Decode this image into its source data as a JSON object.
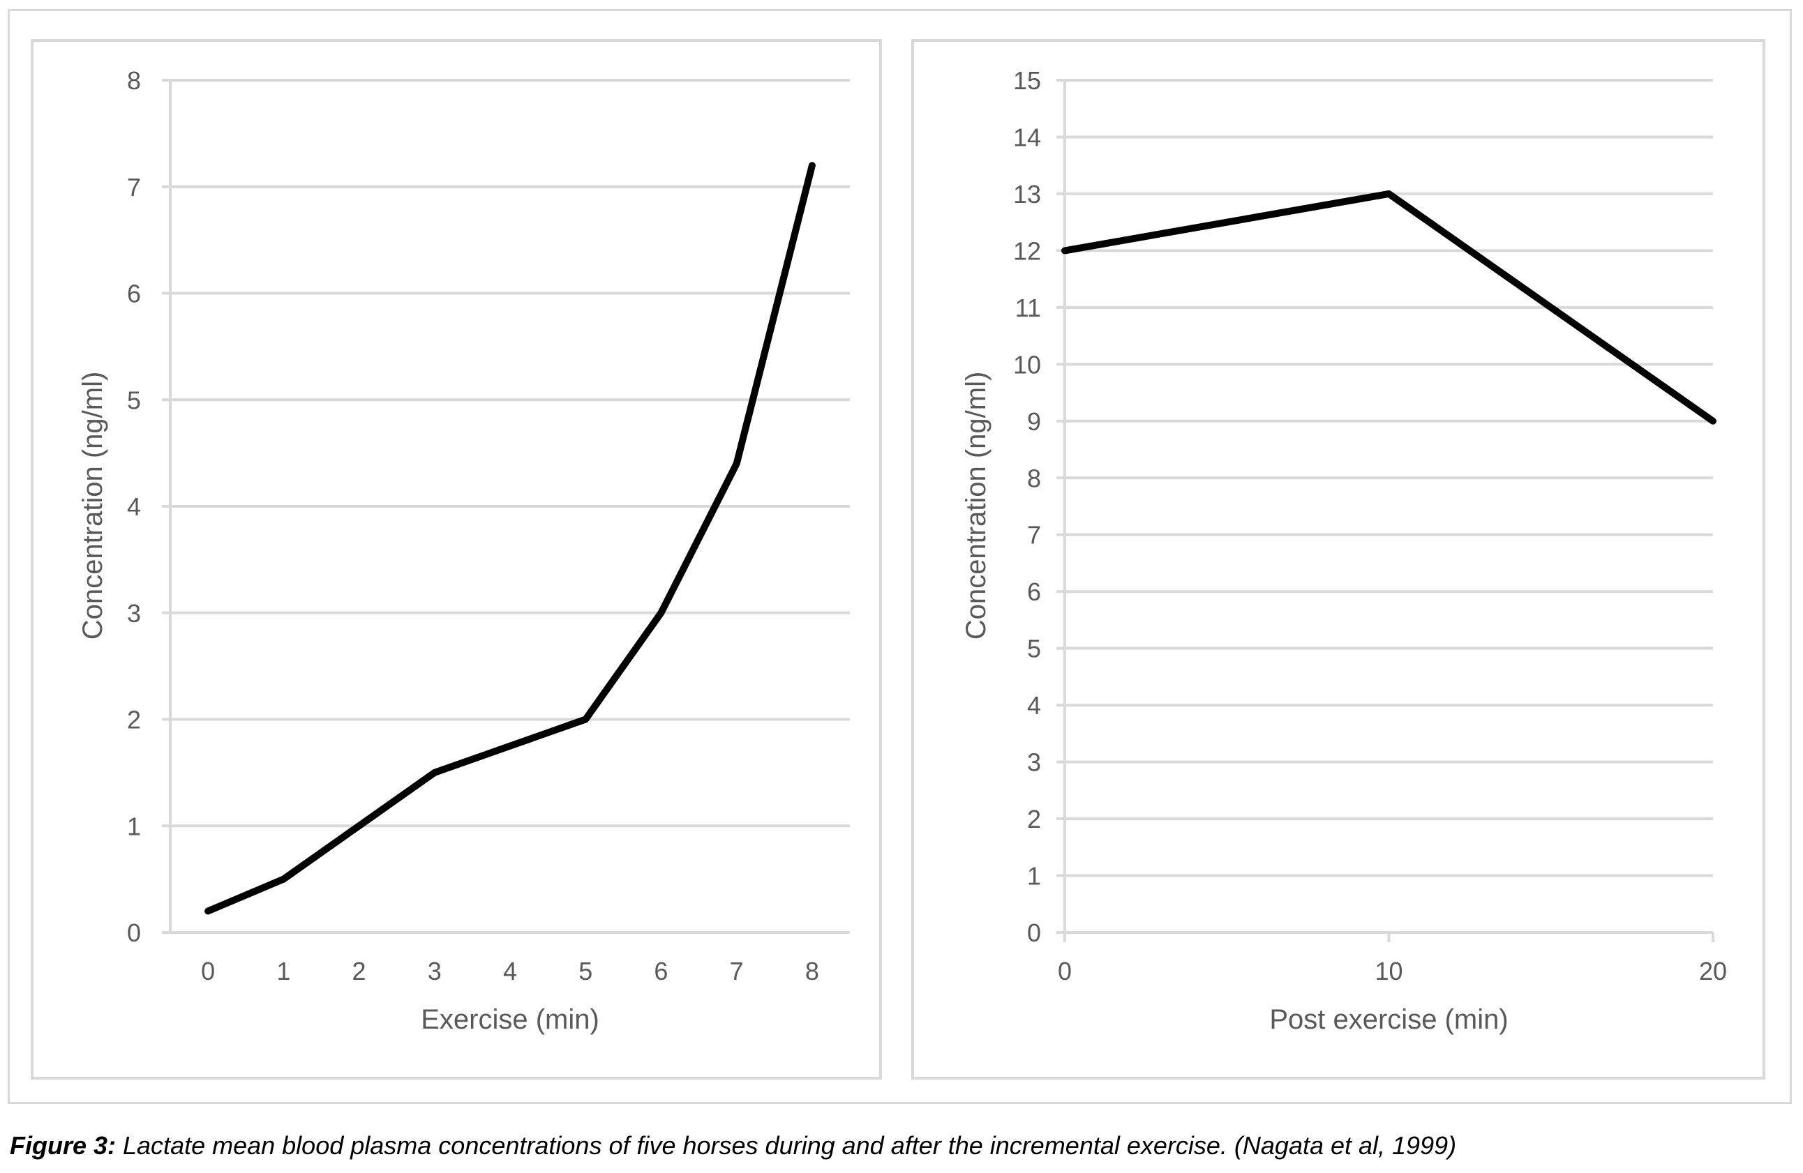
{
  "chart_data": [
    {
      "type": "line",
      "title": "",
      "xlabel": "Exercise (min)",
      "ylabel": "Concentration (ng/ml)",
      "categories": [
        "0",
        "1",
        "2",
        "3",
        "4",
        "5",
        "6",
        "7",
        "8"
      ],
      "x": [
        0,
        1,
        2,
        3,
        4,
        5,
        6,
        7,
        8
      ],
      "xlim": [
        -0.5,
        8.5
      ],
      "ylim": [
        0,
        8
      ],
      "yticks": [
        0,
        1,
        2,
        3,
        4,
        5,
        6,
        7,
        8
      ],
      "series": [
        {
          "values": [
            0.2,
            0.5,
            1.0,
            1.5,
            1.75,
            2.0,
            3.0,
            4.4,
            7.2
          ],
          "color": "#000000"
        }
      ],
      "grid": true,
      "legend": "none"
    },
    {
      "type": "line",
      "title": "",
      "xlabel": "Post exercise (min)",
      "ylabel": "Concentration (ng/ml)",
      "categories": [
        "0",
        "10",
        "20"
      ],
      "x": [
        0,
        10,
        20
      ],
      "xlim": [
        0,
        20
      ],
      "ylim": [
        0,
        15
      ],
      "yticks": [
        0,
        1,
        2,
        3,
        4,
        5,
        6,
        7,
        8,
        9,
        10,
        11,
        12,
        13,
        14,
        15
      ],
      "series": [
        {
          "values": [
            12,
            13,
            9
          ],
          "color": "#000000"
        }
      ],
      "grid": true,
      "legend": "none"
    }
  ],
  "caption": {
    "label": "Figure 3:",
    "text": " Lactate mean blood plasma concentrations of five horses during and after the incremental exercise. (Nagata et al, 1999)"
  },
  "colors": {
    "gridline": "#d9d9d9",
    "tick_text": "#595959",
    "series_line": "#000000"
  }
}
